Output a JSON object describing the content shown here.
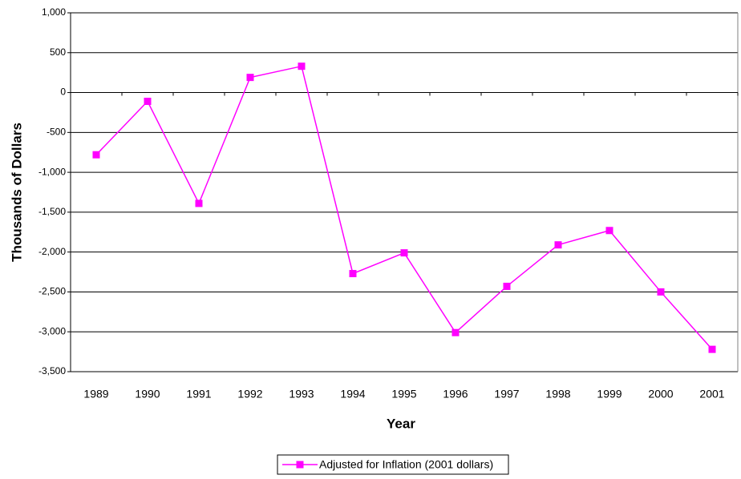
{
  "chart_data": {
    "type": "line",
    "x_label": "Year",
    "y_label": "Thousands of Dollars",
    "categories": [
      "1989",
      "1990",
      "1991",
      "1992",
      "1993",
      "1994",
      "1995",
      "1996",
      "1997",
      "1998",
      "1999",
      "2000",
      "2001"
    ],
    "series": [
      {
        "name": "Adjusted for Inflation (2001 dollars)",
        "color": "#ff00ff",
        "values": [
          -780,
          -110,
          -1390,
          190,
          330,
          -2270,
          -2010,
          -3010,
          -2430,
          -1910,
          -1730,
          -2500,
          -3220
        ]
      }
    ],
    "ylim": [
      -3500,
      1000
    ],
    "yticks": [
      {
        "value": -3500,
        "label": "-3,500"
      },
      {
        "value": -3000,
        "label": "-3,000"
      },
      {
        "value": -2500,
        "label": "-2,500"
      },
      {
        "value": -2000,
        "label": "-2,000"
      },
      {
        "value": -1500,
        "label": "-1,500"
      },
      {
        "value": -1000,
        "label": "-1,000"
      },
      -500,
      0,
      500,
      {
        "value": 1000,
        "label": "1,000"
      }
    ],
    "grid": true,
    "legend": "bottom"
  }
}
